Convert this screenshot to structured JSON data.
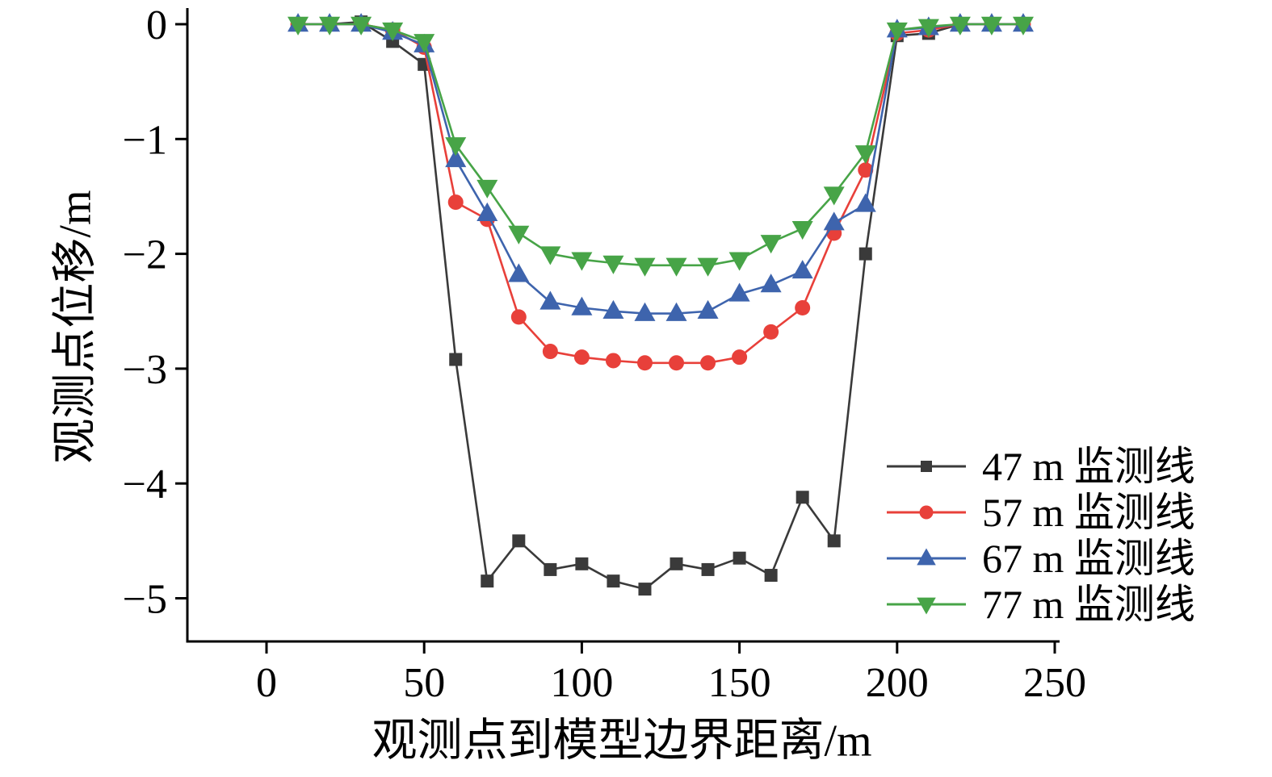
{
  "chart_data": {
    "type": "line",
    "title": "",
    "xlabel": "观测点到模型边界距离/m",
    "ylabel": "观测点位移/m",
    "grid": false,
    "legend_position": "inside-lower-right",
    "xlim": [
      -25,
      251
    ],
    "ylim": [
      -5.4,
      0
    ],
    "xticks": {
      "values": [
        0,
        50,
        100,
        150,
        200,
        250
      ],
      "labels": [
        "0",
        "50",
        "100",
        "150",
        "200",
        "250"
      ]
    },
    "yticks": {
      "values": [
        0,
        -1,
        -2,
        -3,
        -4,
        -5
      ],
      "labels": [
        "0",
        "−1",
        "−2",
        "−3",
        "−4",
        "−5"
      ]
    },
    "x": [
      10,
      20,
      30,
      40,
      50,
      60,
      70,
      80,
      90,
      100,
      110,
      120,
      130,
      140,
      150,
      160,
      170,
      180,
      190,
      200,
      210,
      220,
      230,
      240
    ],
    "series": [
      {
        "name": "47 m 监测线",
        "color": "#3a3a3a",
        "marker": "square",
        "values": [
          0,
          0,
          0.02,
          -0.15,
          -0.35,
          -2.92,
          -4.85,
          -4.5,
          -4.75,
          -4.7,
          -4.85,
          -4.92,
          -4.7,
          -4.75,
          -4.65,
          -4.8,
          -4.12,
          -4.5,
          -2.0,
          -0.1,
          -0.08,
          0,
          0,
          0
        ]
      },
      {
        "name": "57 m 监测线",
        "color": "#e8403a",
        "marker": "circle",
        "values": [
          0,
          0,
          0,
          -0.05,
          -0.2,
          -1.55,
          -1.7,
          -2.55,
          -2.85,
          -2.9,
          -2.93,
          -2.95,
          -2.95,
          -2.95,
          -2.9,
          -2.68,
          -2.47,
          -1.82,
          -1.27,
          -0.08,
          -0.05,
          0,
          0,
          0
        ]
      },
      {
        "name": "67 m 监测线",
        "color": "#3e64ad",
        "marker": "triangle-up",
        "values": [
          0,
          0,
          0,
          -0.07,
          -0.18,
          -1.18,
          -1.65,
          -2.18,
          -2.42,
          -2.47,
          -2.5,
          -2.52,
          -2.52,
          -2.5,
          -2.35,
          -2.27,
          -2.15,
          -1.73,
          -1.57,
          -0.05,
          -0.03,
          0,
          0,
          0
        ]
      },
      {
        "name": "77 m 监测线",
        "color": "#47a447",
        "marker": "triangle-down",
        "values": [
          0,
          0,
          0,
          -0.05,
          -0.15,
          -1.05,
          -1.42,
          -1.82,
          -2.0,
          -2.05,
          -2.08,
          -2.1,
          -2.1,
          -2.1,
          -2.05,
          -1.9,
          -1.78,
          -1.48,
          -1.12,
          -0.05,
          -0.02,
          0,
          0,
          0
        ]
      }
    ]
  }
}
